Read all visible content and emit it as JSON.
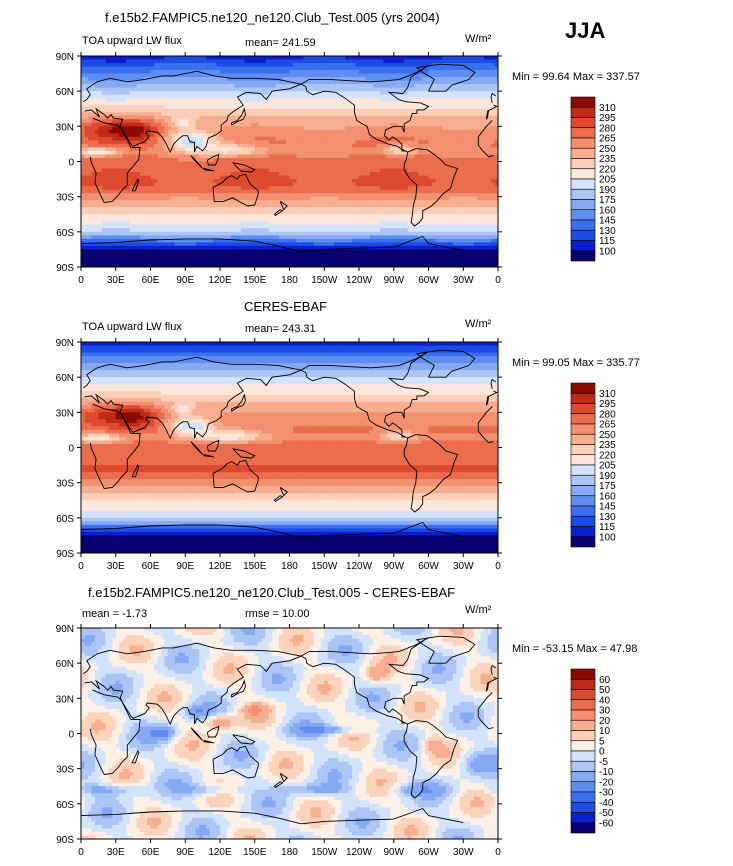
{
  "season": "JJA",
  "units": "W/m²",
  "lat_ticks": [
    "90N",
    "60N",
    "30N",
    "0",
    "30S",
    "60S",
    "90S"
  ],
  "lon_ticks": [
    "0",
    "30E",
    "60E",
    "90E",
    "120E",
    "150E",
    "180",
    "150W",
    "120W",
    "90W",
    "60W",
    "30W",
    "0"
  ],
  "palette_abs": [
    "#08006e",
    "#0b1fd1",
    "#1d4be6",
    "#3a6ff0",
    "#5f8ef2",
    "#86a9f3",
    "#adc5f6",
    "#d2e3fb",
    "#fbe7dc",
    "#fbcfb9",
    "#f7ae8e",
    "#f2906f",
    "#ea6d4d",
    "#de4a2e",
    "#c02a18",
    "#8b0b04"
  ],
  "palette_diff": [
    "#08006e",
    "#0b1fd1",
    "#1d4be6",
    "#3a6ff0",
    "#5f8ef2",
    "#86a9f3",
    "#adc5f6",
    "#d2e3fb",
    "#fdf0e6",
    "#fbd3bc",
    "#f7ae8e",
    "#f2906f",
    "#ea6d4d",
    "#de4a2e",
    "#c02a18",
    "#8b0b04"
  ],
  "panels": [
    {
      "heading": "f.e15b2.FAMPIC5.ne120_ne120.Club_Test.005 (yrs 2004)",
      "left_label": "TOA upward LW flux",
      "center_label": "mean= 241.59",
      "minmax": "Min =  99.64 Max = 337.57",
      "colorbar": [
        "310",
        "295",
        "280",
        "265",
        "250",
        "235",
        "220",
        "205",
        "190",
        "175",
        "160",
        "145",
        "130",
        "115",
        "100"
      ]
    },
    {
      "heading": "CERES-EBAF",
      "left_label": "TOA upward LW flux",
      "center_label": "mean= 243.31",
      "minmax": "Min =  99.05 Max = 335.77",
      "colorbar": [
        "310",
        "295",
        "280",
        "265",
        "250",
        "235",
        "220",
        "205",
        "190",
        "175",
        "160",
        "145",
        "130",
        "115",
        "100"
      ]
    },
    {
      "heading": "f.e15b2.FAMPIC5.ne120_ne120.Club_Test.005 - CERES-EBAF",
      "left_label": "mean =   -1.73",
      "center_label": "rmse =   10.00",
      "minmax": "Min = -53.15 Max =  47.98",
      "colorbar": [
        "60",
        "50",
        "40",
        "30",
        "20",
        "10",
        "5",
        "0",
        "-5",
        "-10",
        "-20",
        "-30",
        "-40",
        "-50",
        "-60"
      ]
    }
  ],
  "chart_data": [
    {
      "type": "heatmap",
      "title": "f.e15b2.FAMPIC5.ne120_ne120.Club_Test.005 (yrs 2004)",
      "variable": "TOA upward LW flux",
      "units": "W/m²",
      "season": "JJA",
      "mean": 241.59,
      "min": 99.64,
      "max": 337.57,
      "xlim": [
        0,
        360
      ],
      "ylim": [
        -90,
        90
      ],
      "contour_levels": [
        100,
        115,
        130,
        145,
        160,
        175,
        190,
        205,
        220,
        235,
        250,
        265,
        280,
        295,
        310
      ]
    },
    {
      "type": "heatmap",
      "title": "CERES-EBAF",
      "variable": "TOA upward LW flux",
      "units": "W/m²",
      "season": "JJA",
      "mean": 243.31,
      "min": 99.05,
      "max": 335.77,
      "xlim": [
        0,
        360
      ],
      "ylim": [
        -90,
        90
      ],
      "contour_levels": [
        100,
        115,
        130,
        145,
        160,
        175,
        190,
        205,
        220,
        235,
        250,
        265,
        280,
        295,
        310
      ]
    },
    {
      "type": "heatmap",
      "title": "f.e15b2.FAMPIC5.ne120_ne120.Club_Test.005 - CERES-EBAF",
      "units": "W/m²",
      "season": "JJA",
      "mean": -1.73,
      "rmse": 10.0,
      "min": -53.15,
      "max": 47.98,
      "xlim": [
        0,
        360
      ],
      "ylim": [
        -90,
        90
      ],
      "contour_levels": [
        -60,
        -50,
        -40,
        -30,
        -20,
        -10,
        -5,
        0,
        5,
        10,
        20,
        30,
        40,
        50,
        60
      ]
    }
  ]
}
